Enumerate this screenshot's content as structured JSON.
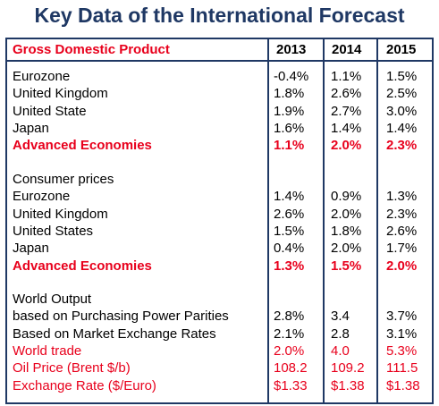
{
  "title": "Key Data of the International Forecast",
  "table": {
    "header": [
      "Gross Domestic Product",
      "2013",
      "2014",
      "2015"
    ],
    "sections": [
      {
        "rows": [
          [
            "Eurozone",
            "-0.4%",
            "1.1%",
            "1.5%"
          ],
          [
            "United Kingdom",
            "1.8%",
            "2.6%",
            "2.5%"
          ],
          [
            "United State",
            "1.9%",
            "2.7%",
            "3.0%"
          ],
          [
            "Japan",
            "1.6%",
            "1.4%",
            "1.4%"
          ],
          [
            "Advanced Economies",
            "1.1%",
            "2.0%",
            "2.3%"
          ]
        ]
      },
      {
        "rows": [
          [
            "Consumer prices"
          ],
          [
            "Eurozone",
            "1.4%",
            "0.9%",
            "1.3%"
          ],
          [
            "United Kingdom",
            "2.6%",
            "2.0%",
            "2.3%"
          ],
          [
            "United States",
            "1.5%",
            "1.8%",
            "2.6%"
          ],
          [
            "Japan",
            "0.4%",
            "2.0%",
            "1.7%"
          ],
          [
            "Advanced Economies",
            "1.3%",
            "1.5%",
            "2.0%"
          ]
        ]
      },
      {
        "rows": [
          [
            "World Output"
          ],
          [
            "based on Purchasing Power Parities",
            "2.8%",
            "3.4",
            "3.7%"
          ],
          [
            "Based on Market Exchange Rates",
            "2.1%",
            "2.8",
            "3.1%"
          ],
          [
            "World trade",
            "2.0%",
            "4.0",
            "5.3%"
          ],
          [
            "Oil Price (Brent $/b)",
            "108.2",
            "109.2",
            "111.5"
          ],
          [
            "Exchange Rate ($/Euro)",
            "$1.33",
            "$1.38",
            "$1.38"
          ]
        ]
      }
    ]
  }
}
